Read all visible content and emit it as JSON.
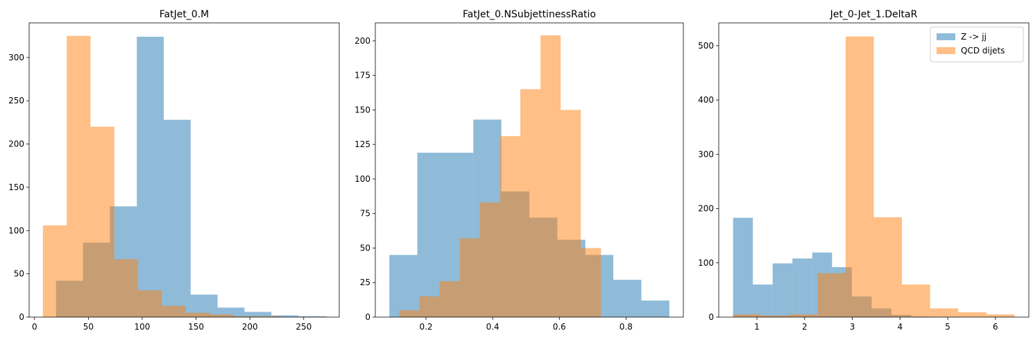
{
  "colors": {
    "series_0": "#1f77b4",
    "series_1": "#ff7f0e"
  },
  "legend": {
    "position": "upper-right",
    "entries": [
      "Z -> jj",
      "QCD dijets"
    ]
  },
  "chart_data": [
    {
      "type": "histogram",
      "title": "FatJet_0.M",
      "xlim": [
        -5,
        283
      ],
      "ylim": [
        0,
        340
      ],
      "xticks": [
        {
          "v": 0,
          "label": "0"
        },
        {
          "v": 50,
          "label": "50"
        },
        {
          "v": 100,
          "label": "100"
        },
        {
          "v": 150,
          "label": "150"
        },
        {
          "v": 200,
          "label": "200"
        },
        {
          "v": 250,
          "label": "250"
        }
      ],
      "yticks": [
        {
          "v": 0,
          "label": "0"
        },
        {
          "v": 50,
          "label": "50"
        },
        {
          "v": 100,
          "label": "100"
        },
        {
          "v": 150,
          "label": "150"
        },
        {
          "v": 200,
          "label": "200"
        },
        {
          "v": 250,
          "label": "250"
        },
        {
          "v": 300,
          "label": "300"
        }
      ],
      "series": [
        {
          "name": "Z -> jj",
          "bins": [
            20,
            45,
            70,
            95,
            120,
            145,
            170,
            195,
            220,
            245,
            271
          ],
          "counts": [
            42,
            86,
            128,
            324,
            228,
            26,
            11,
            6,
            2,
            1
          ]
        },
        {
          "name": "QCD dijets",
          "bins": [
            7.8,
            29.9,
            52.0,
            74.1,
            96.2,
            118.3,
            140.4,
            162.5,
            184.6,
            206.7,
            228.8
          ],
          "counts": [
            106,
            325,
            220,
            67,
            31,
            13,
            5,
            3,
            1,
            1
          ]
        }
      ]
    },
    {
      "type": "histogram",
      "title": "FatJet_0.NSubjettinessRatio",
      "xlim": [
        0.048,
        0.972
      ],
      "ylim": [
        0,
        213
      ],
      "xticks": [
        {
          "v": 0.2,
          "label": "0.2"
        },
        {
          "v": 0.4,
          "label": "0.4"
        },
        {
          "v": 0.6,
          "label": "0.6"
        },
        {
          "v": 0.8,
          "label": "0.8"
        }
      ],
      "yticks": [
        {
          "v": 0,
          "label": "0"
        },
        {
          "v": 25,
          "label": "25"
        },
        {
          "v": 50,
          "label": "50"
        },
        {
          "v": 75,
          "label": "75"
        },
        {
          "v": 100,
          "label": "100"
        },
        {
          "v": 125,
          "label": "125"
        },
        {
          "v": 150,
          "label": "150"
        },
        {
          "v": 175,
          "label": "175"
        },
        {
          "v": 200,
          "label": "200"
        }
      ],
      "series": [
        {
          "name": "Z -> jj",
          "bins": [
            0.09,
            0.174,
            0.258,
            0.342,
            0.426,
            0.51,
            0.594,
            0.678,
            0.762,
            0.846,
            0.93
          ],
          "counts": [
            45,
            119,
            119,
            143,
            91,
            72,
            56,
            45,
            27,
            12
          ]
        },
        {
          "name": "QCD dijets",
          "bins": [
            0.12,
            0.1805,
            0.241,
            0.3015,
            0.362,
            0.4225,
            0.483,
            0.5435,
            0.604,
            0.6645,
            0.725
          ],
          "counts": [
            5,
            15,
            26,
            57,
            83,
            131,
            165,
            204,
            150,
            50
          ]
        }
      ]
    },
    {
      "type": "histogram",
      "title": "Jet_0-Jet_1.DeltaR",
      "xlim": [
        0.2,
        6.7
      ],
      "ylim": [
        0,
        542
      ],
      "xticks": [
        {
          "v": 1,
          "label": "1"
        },
        {
          "v": 2,
          "label": "2"
        },
        {
          "v": 3,
          "label": "3"
        },
        {
          "v": 4,
          "label": "4"
        },
        {
          "v": 5,
          "label": "5"
        },
        {
          "v": 6,
          "label": "6"
        }
      ],
      "yticks": [
        {
          "v": 0,
          "label": "0"
        },
        {
          "v": 100,
          "label": "100"
        },
        {
          "v": 200,
          "label": "200"
        },
        {
          "v": 300,
          "label": "300"
        },
        {
          "v": 400,
          "label": "400"
        },
        {
          "v": 500,
          "label": "500"
        }
      ],
      "series": [
        {
          "name": "Z -> jj",
          "bins": [
            0.5,
            0.915,
            1.33,
            1.745,
            2.16,
            2.575,
            2.99,
            3.405,
            3.82,
            4.235,
            4.65
          ],
          "counts": [
            183,
            60,
            99,
            108,
            119,
            92,
            38,
            16,
            4,
            1
          ]
        },
        {
          "name": "QCD dijets",
          "bins": [
            0.5,
            1.09,
            1.68,
            2.27,
            2.86,
            3.45,
            4.04,
            4.63,
            5.22,
            5.81,
            6.4
          ],
          "counts": [
            5,
            3,
            5,
            81,
            517,
            184,
            60,
            16,
            9,
            5
          ]
        }
      ]
    }
  ]
}
